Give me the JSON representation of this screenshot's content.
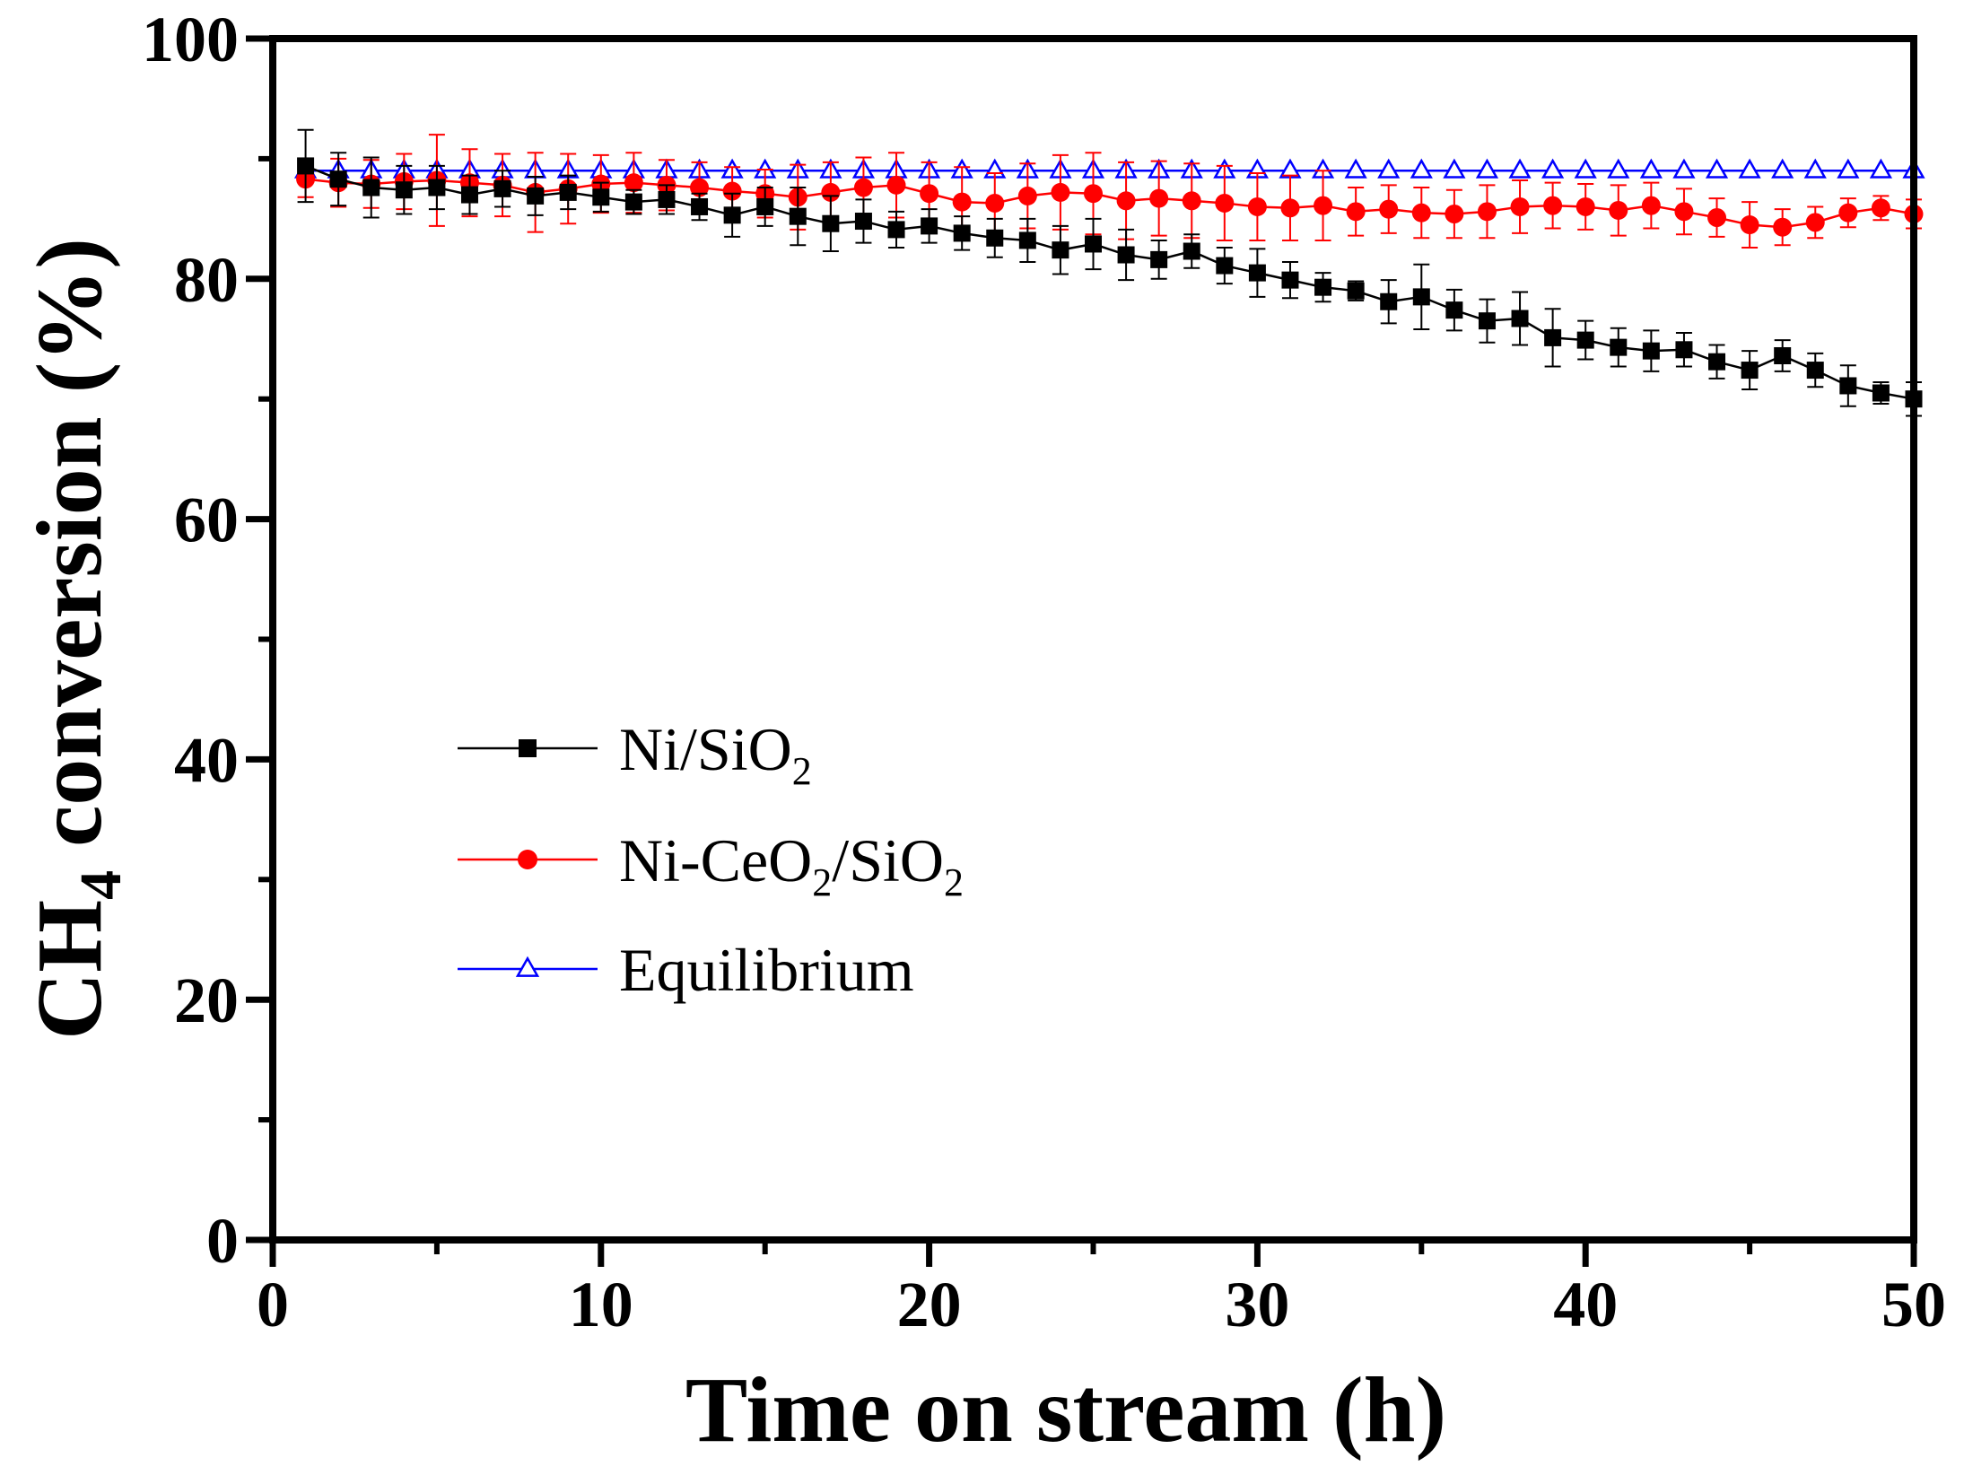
{
  "chart_data": {
    "type": "line",
    "title": "",
    "xlabel": "Time on stream (h)",
    "ylabel_main": "CH",
    "ylabel_sub": "4",
    "ylabel_rest": " conversion (%)",
    "xlim": [
      0,
      50
    ],
    "ylim": [
      0,
      100
    ],
    "x_ticks": [
      0,
      10,
      20,
      30,
      40,
      50
    ],
    "x_minor_ticks": [
      5,
      15,
      25,
      35,
      45
    ],
    "y_ticks": [
      0,
      20,
      40,
      60,
      80,
      100
    ],
    "y_minor_ticks": [
      10,
      30,
      50,
      70,
      90
    ],
    "legend_position": "center-left",
    "series": [
      {
        "name": "Ni/SiO2",
        "legend": {
          "base": "Ni/SiO",
          "sub": "2",
          "after": "",
          "sub2": ""
        },
        "color": "#000000",
        "marker": "square",
        "x": [
          1,
          2,
          3,
          4,
          5,
          6,
          7,
          8,
          9,
          10,
          11,
          12,
          13,
          14,
          15,
          16,
          17,
          18,
          19,
          20,
          21,
          22,
          23,
          24,
          25,
          26,
          27,
          28,
          29,
          30,
          31,
          32,
          33,
          34,
          35,
          36,
          37,
          38,
          39,
          40,
          41,
          42,
          43,
          44,
          45,
          46,
          47,
          48,
          49,
          50
        ],
        "values": [
          89.4,
          88.3,
          87.6,
          87.4,
          87.6,
          87.0,
          87.5,
          86.9,
          87.2,
          86.8,
          86.4,
          86.6,
          86.0,
          85.3,
          86.0,
          85.2,
          84.6,
          84.8,
          84.1,
          84.4,
          83.8,
          83.4,
          83.2,
          82.4,
          82.9,
          82.0,
          81.6,
          82.3,
          81.1,
          80.5,
          79.9,
          79.3,
          79.0,
          78.1,
          78.5,
          77.4,
          76.5,
          76.7,
          75.1,
          74.9,
          74.3,
          74.0,
          74.1,
          73.1,
          72.4,
          73.6,
          72.4,
          71.1,
          70.5,
          70.0
        ],
        "errors": [
          3.0,
          2.2,
          2.5,
          2.0,
          1.8,
          1.6,
          1.5,
          1.6,
          1.4,
          1.2,
          1.0,
          1.2,
          1.1,
          1.8,
          1.6,
          2.4,
          2.3,
          1.8,
          1.5,
          1.4,
          1.4,
          1.6,
          1.8,
          2.0,
          2.1,
          2.1,
          1.6,
          1.4,
          1.5,
          2.0,
          1.5,
          1.2,
          0.8,
          1.8,
          2.7,
          1.7,
          1.8,
          2.2,
          2.4,
          1.6,
          1.6,
          1.7,
          1.4,
          1.4,
          1.6,
          1.3,
          1.4,
          1.7,
          0.9,
          1.4
        ]
      },
      {
        "name": "Ni-CeO2/SiO2",
        "legend": {
          "base": "Ni-CeO",
          "sub": "2",
          "after": "/SiO",
          "sub2": "2"
        },
        "color": "#ff0000",
        "marker": "circle",
        "x": [
          1,
          2,
          3,
          4,
          5,
          6,
          7,
          8,
          9,
          10,
          11,
          12,
          13,
          14,
          15,
          16,
          17,
          18,
          19,
          20,
          21,
          22,
          23,
          24,
          25,
          26,
          27,
          28,
          29,
          30,
          31,
          32,
          33,
          34,
          35,
          36,
          37,
          38,
          39,
          40,
          41,
          42,
          43,
          44,
          45,
          46,
          47,
          48,
          49,
          50
        ],
        "values": [
          88.3,
          88.0,
          87.9,
          88.1,
          88.2,
          88.0,
          87.8,
          87.2,
          87.5,
          87.9,
          88.0,
          87.8,
          87.6,
          87.3,
          87.1,
          86.8,
          87.2,
          87.6,
          87.8,
          87.1,
          86.4,
          86.3,
          86.9,
          87.2,
          87.1,
          86.5,
          86.7,
          86.5,
          86.3,
          86.0,
          85.9,
          86.1,
          85.6,
          85.8,
          85.5,
          85.4,
          85.6,
          86.0,
          86.1,
          86.0,
          85.7,
          86.1,
          85.6,
          85.1,
          84.5,
          84.3,
          84.7,
          85.5,
          85.9,
          85.4
        ],
        "errors": [
          1.5,
          2.0,
          2.0,
          2.3,
          3.8,
          2.8,
          2.6,
          3.3,
          2.9,
          2.4,
          2.5,
          2.1,
          2.1,
          2.0,
          2.0,
          2.7,
          2.5,
          2.5,
          2.7,
          2.6,
          2.9,
          2.5,
          2.7,
          3.1,
          3.4,
          3.2,
          3.1,
          3.1,
          3.1,
          2.8,
          2.7,
          2.9,
          2.0,
          2.0,
          2.1,
          2.0,
          2.2,
          2.2,
          1.9,
          1.9,
          2.1,
          1.9,
          1.9,
          1.6,
          1.9,
          1.5,
          1.3,
          1.2,
          1.0,
          1.2
        ]
      },
      {
        "name": "Equilibrium",
        "legend": {
          "base": "Equilibrium",
          "sub": "",
          "after": "",
          "sub2": ""
        },
        "color": "#0000ff",
        "marker": "triangle-open",
        "x": [
          1,
          2,
          3,
          4,
          5,
          6,
          7,
          8,
          9,
          10,
          11,
          12,
          13,
          14,
          15,
          16,
          17,
          18,
          19,
          20,
          21,
          22,
          23,
          24,
          25,
          26,
          27,
          28,
          29,
          30,
          31,
          32,
          33,
          34,
          35,
          36,
          37,
          38,
          39,
          40,
          41,
          42,
          43,
          44,
          45,
          46,
          47,
          48,
          49,
          50
        ],
        "values": [
          89,
          89,
          89,
          89,
          89,
          89,
          89,
          89,
          89,
          89,
          89,
          89,
          89,
          89,
          89,
          89,
          89,
          89,
          89,
          89,
          89,
          89,
          89,
          89,
          89,
          89,
          89,
          89,
          89,
          89,
          89,
          89,
          89,
          89,
          89,
          89,
          89,
          89,
          89,
          89,
          89,
          89,
          89,
          89,
          89,
          89,
          89,
          89,
          89,
          89
        ],
        "errors": []
      }
    ]
  }
}
